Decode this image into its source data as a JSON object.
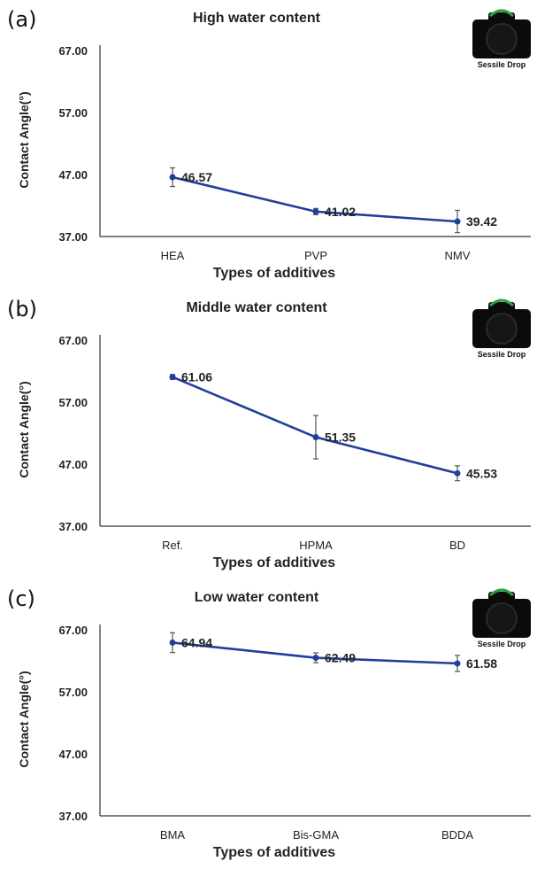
{
  "colors": {
    "line": "#1f3f9a",
    "axis": "#333333",
    "errorbar": "#555555"
  },
  "badge_icon": "camera-icon",
  "chart_data": [
    {
      "type": "line",
      "panel": "(a)",
      "title": "High water content",
      "xlabel": "Types of additives",
      "ylabel": "Contact Angle(°)",
      "badge_text": "Sessile Drop",
      "ylim": [
        37,
        67
      ],
      "yticks": [
        "37.00",
        "47.00",
        "57.00",
        "67.00"
      ],
      "categories": [
        "HEA",
        "PVP",
        "NMV"
      ],
      "values": [
        46.57,
        41.02,
        39.42
      ],
      "errors": [
        1.5,
        0.5,
        1.8
      ],
      "labels": [
        "46.57",
        "41.02",
        "39.42"
      ]
    },
    {
      "type": "line",
      "panel": "(b)",
      "title": "Middle water content",
      "xlabel": "Types of additives",
      "ylabel": "Contact Angle(°)",
      "badge_text": "Sessile Drop",
      "ylim": [
        37,
        67
      ],
      "yticks": [
        "37.00",
        "47.00",
        "57.00",
        "67.00"
      ],
      "categories": [
        "Ref.",
        "HPMA",
        "BD"
      ],
      "values": [
        61.06,
        51.35,
        45.53
      ],
      "errors": [
        0.4,
        3.5,
        1.2
      ],
      "labels": [
        "61.06",
        "51.35",
        "45.53"
      ]
    },
    {
      "type": "line",
      "panel": "(c)",
      "title": "Low water content",
      "xlabel": "Types of additives",
      "ylabel": "Contact Angle(°)",
      "badge_text": "Sessile Drop",
      "ylim": [
        37,
        67
      ],
      "yticks": [
        "37.00",
        "47.00",
        "57.00",
        "67.00"
      ],
      "categories": [
        "BMA",
        "Bis-GMA",
        "BDDA"
      ],
      "values": [
        64.94,
        62.49,
        61.58
      ],
      "errors": [
        1.6,
        0.8,
        1.3
      ],
      "labels": [
        "64.94",
        "62.49",
        "61.58"
      ]
    }
  ]
}
